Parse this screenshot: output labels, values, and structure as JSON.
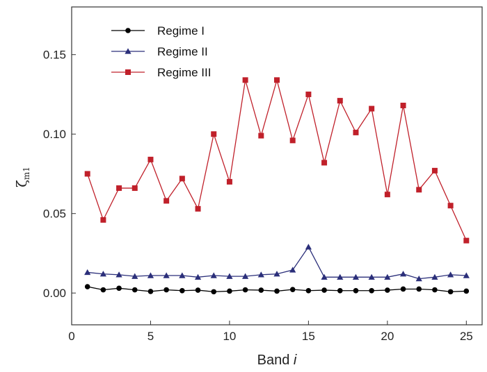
{
  "chart_data": {
    "type": "line",
    "title": "",
    "xlabel": "Band ",
    "xlabel_italic": "i",
    "ylabel": "ζ",
    "ylabel_sub": "m1",
    "xlim": [
      0,
      26
    ],
    "ylim": [
      -0.02,
      0.18
    ],
    "xticks": [
      "0",
      "5",
      "10",
      "15",
      "20",
      "25"
    ],
    "yticks": [
      "0.00",
      "0.05",
      "0.10",
      "0.15"
    ],
    "legend_position": "top-left",
    "x": [
      1,
      2,
      3,
      4,
      5,
      6,
      7,
      8,
      9,
      10,
      11,
      12,
      13,
      14,
      15,
      16,
      17,
      18,
      19,
      20,
      21,
      22,
      23,
      24,
      25
    ],
    "series": [
      {
        "name": "Regime I",
        "color": "#000000",
        "marker": "circle",
        "values": [
          0.004,
          0.002,
          0.003,
          0.002,
          0.001,
          0.002,
          0.0015,
          0.0018,
          0.0008,
          0.0012,
          0.002,
          0.0018,
          0.0012,
          0.0022,
          0.0015,
          0.0018,
          0.0015,
          0.0015,
          0.0015,
          0.0018,
          0.0025,
          0.0025,
          0.002,
          0.0008,
          0.0012
        ]
      },
      {
        "name": "Regime II",
        "color": "#2b2f7a",
        "marker": "triangle",
        "values": [
          0.013,
          0.012,
          0.0115,
          0.0105,
          0.011,
          0.011,
          0.011,
          0.01,
          0.011,
          0.0105,
          0.0105,
          0.0115,
          0.012,
          0.0145,
          0.029,
          0.01,
          0.01,
          0.01,
          0.01,
          0.01,
          0.012,
          0.009,
          0.01,
          0.0115,
          0.011
        ]
      },
      {
        "name": "Regime III",
        "color": "#c0202a",
        "marker": "square",
        "values": [
          0.075,
          0.046,
          0.066,
          0.066,
          0.084,
          0.058,
          0.072,
          0.053,
          0.1,
          0.07,
          0.134,
          0.099,
          0.134,
          0.096,
          0.125,
          0.082,
          0.121,
          0.101,
          0.116,
          0.062,
          0.118,
          0.065,
          0.077,
          0.055,
          0.033
        ]
      }
    ]
  }
}
